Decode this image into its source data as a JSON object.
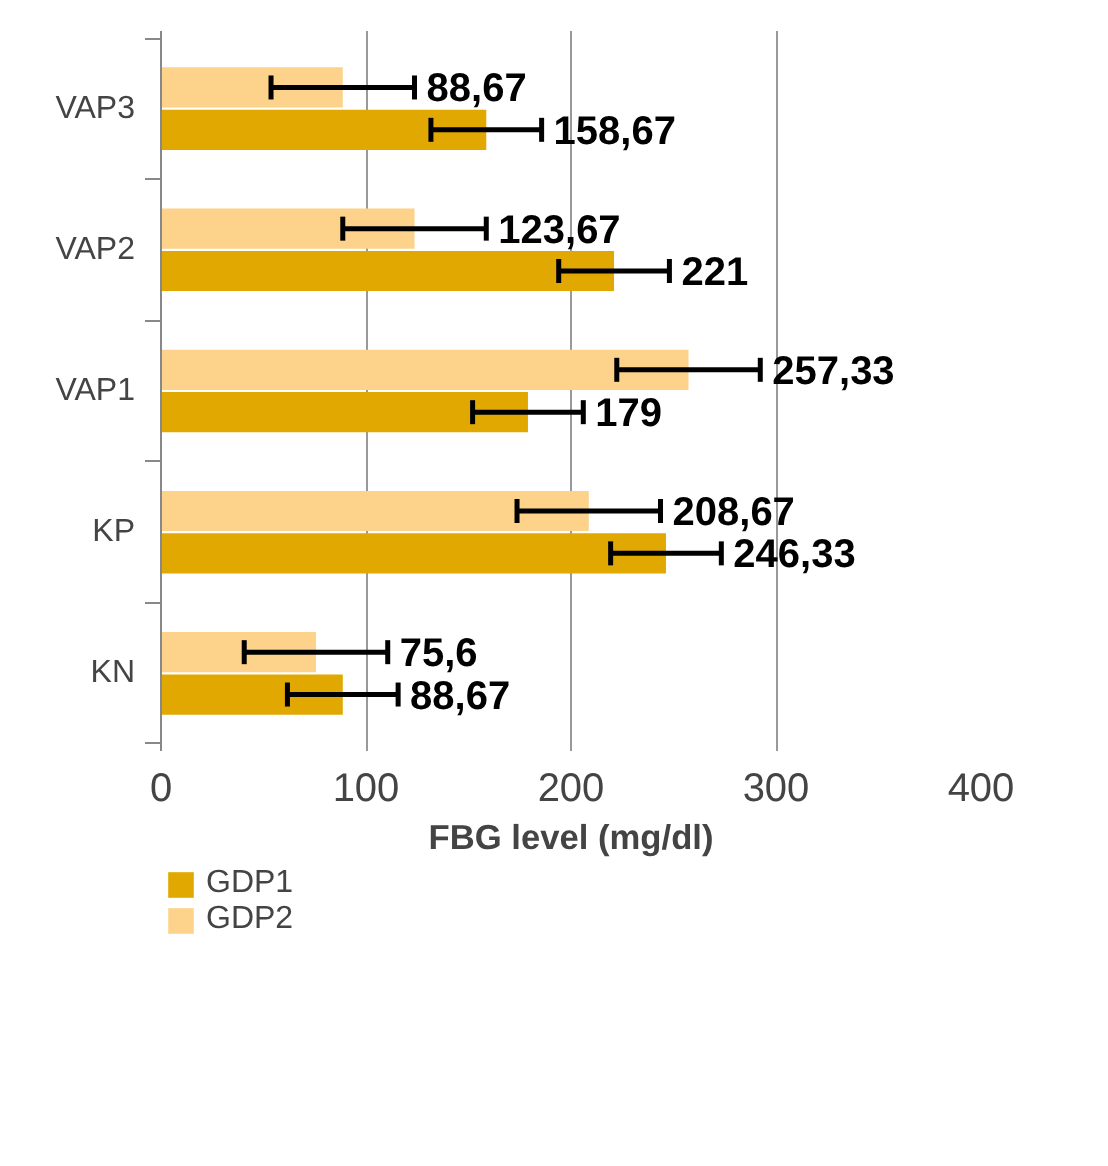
{
  "chart_data": {
    "type": "bar",
    "orientation": "horizontal",
    "xlabel": "FBG level (mg/dl)",
    "categories": [
      "VAP3",
      "VAP2",
      "VAP1",
      "KP",
      "KN"
    ],
    "series": [
      {
        "name": "GDP2",
        "color": "#fdd28a",
        "values": [
          88.67,
          123.67,
          257.33,
          208.67,
          75.6
        ],
        "errors": [
          35,
          35,
          35,
          35,
          35
        ],
        "value_labels": [
          "88,67",
          "123,67",
          "257,33",
          "208,67",
          "75,6"
        ]
      },
      {
        "name": "GDP1",
        "color": "#e0a800",
        "values": [
          158.67,
          221,
          179,
          246.33,
          88.67
        ],
        "errors": [
          27,
          27,
          27,
          27,
          27
        ],
        "value_labels": [
          "158,67",
          "221",
          "179",
          "246,33",
          "88,67"
        ]
      }
    ],
    "xlim": [
      0,
      400
    ],
    "xticks": [
      0,
      100,
      200,
      300,
      400
    ],
    "grid": "x",
    "legend": "bottom left"
  }
}
